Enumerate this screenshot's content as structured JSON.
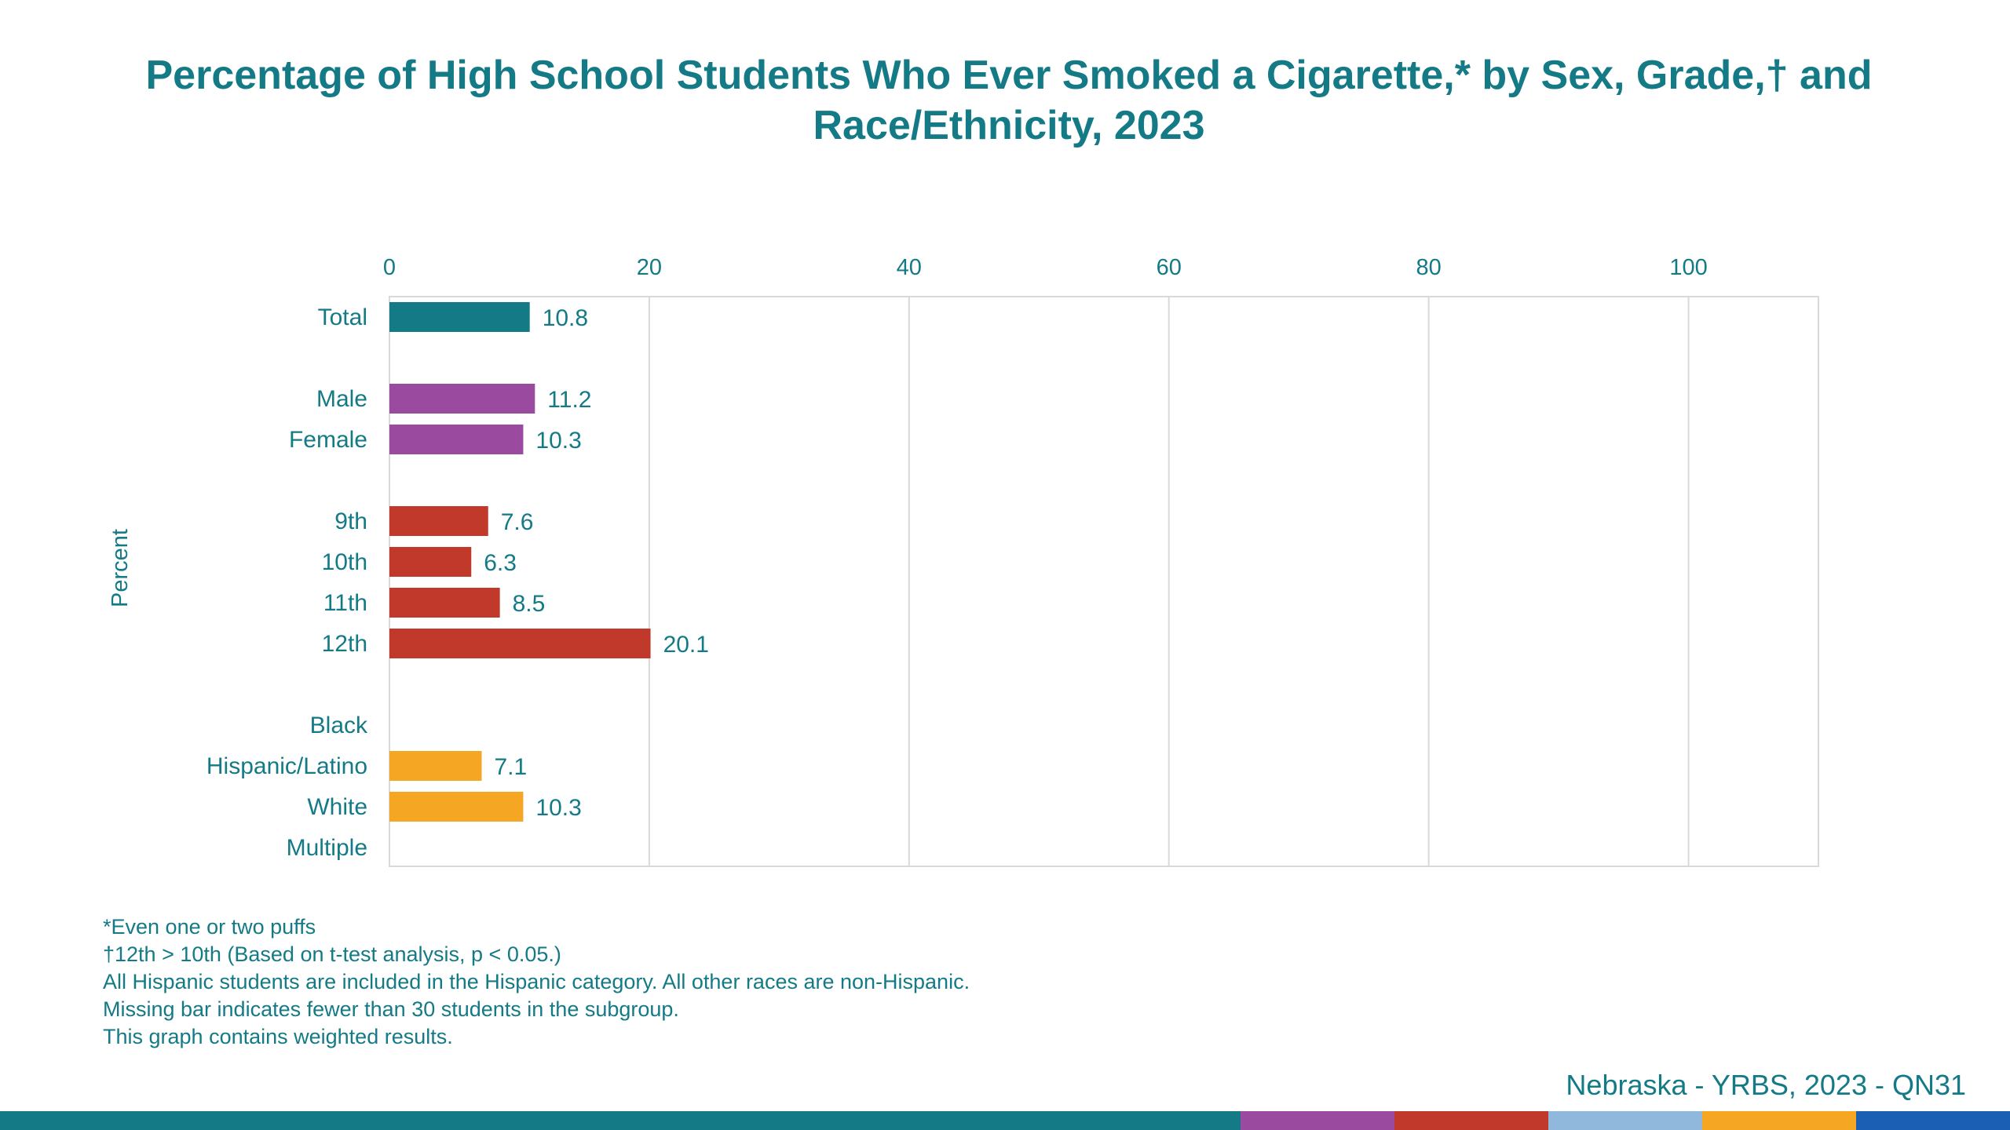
{
  "title_line1": "Percentage of High School Students Who Ever Smoked a Cigarette,* by Sex, Grade,† and",
  "title_line2": "Race/Ethnicity, 2023",
  "chart_data": {
    "type": "bar",
    "orientation": "horizontal",
    "ylabel": "Percent",
    "xlim": [
      0,
      110
    ],
    "xticks": [
      "0",
      "20",
      "40",
      "60",
      "80",
      "100"
    ],
    "grid": true,
    "categories": [
      "Total",
      "Male",
      "Female",
      "9th",
      "10th",
      "11th",
      "12th",
      "Black",
      "Hispanic/Latino",
      "White",
      "Multiple"
    ],
    "values": [
      10.8,
      11.2,
      10.3,
      7.6,
      6.3,
      8.5,
      20.1,
      null,
      7.1,
      10.3,
      null
    ],
    "value_labels": [
      "10.8",
      "11.2",
      "10.3",
      "7.6",
      "6.3",
      "8.5",
      "20.1",
      "",
      "7.1",
      "10.3",
      ""
    ],
    "bar_colors": [
      "#137a86",
      "#9b4b9f",
      "#9b4b9f",
      "#c0392b",
      "#c0392b",
      "#c0392b",
      "#c0392b",
      "#f5a623",
      "#f5a623",
      "#f5a623",
      "#f5a623"
    ]
  },
  "footnotes": [
    "*Even one or two puffs",
    "†12th > 10th (Based on t-test analysis, p < 0.05.)",
    "All Hispanic students are included in the Hispanic category.  All other races are non-Hispanic.",
    "Missing bar indicates fewer than 30 students in the subgroup.",
    "This graph contains weighted results."
  ],
  "source": "Nebraska - YRBS, 2023 - QN31",
  "colors": {
    "text": "#137a86",
    "grid": "#d9d9d9",
    "strip": [
      "#137a86",
      "#9b4b9f",
      "#c0392b",
      "#8fb8dc",
      "#f5a623",
      "#1a5fb4"
    ]
  }
}
